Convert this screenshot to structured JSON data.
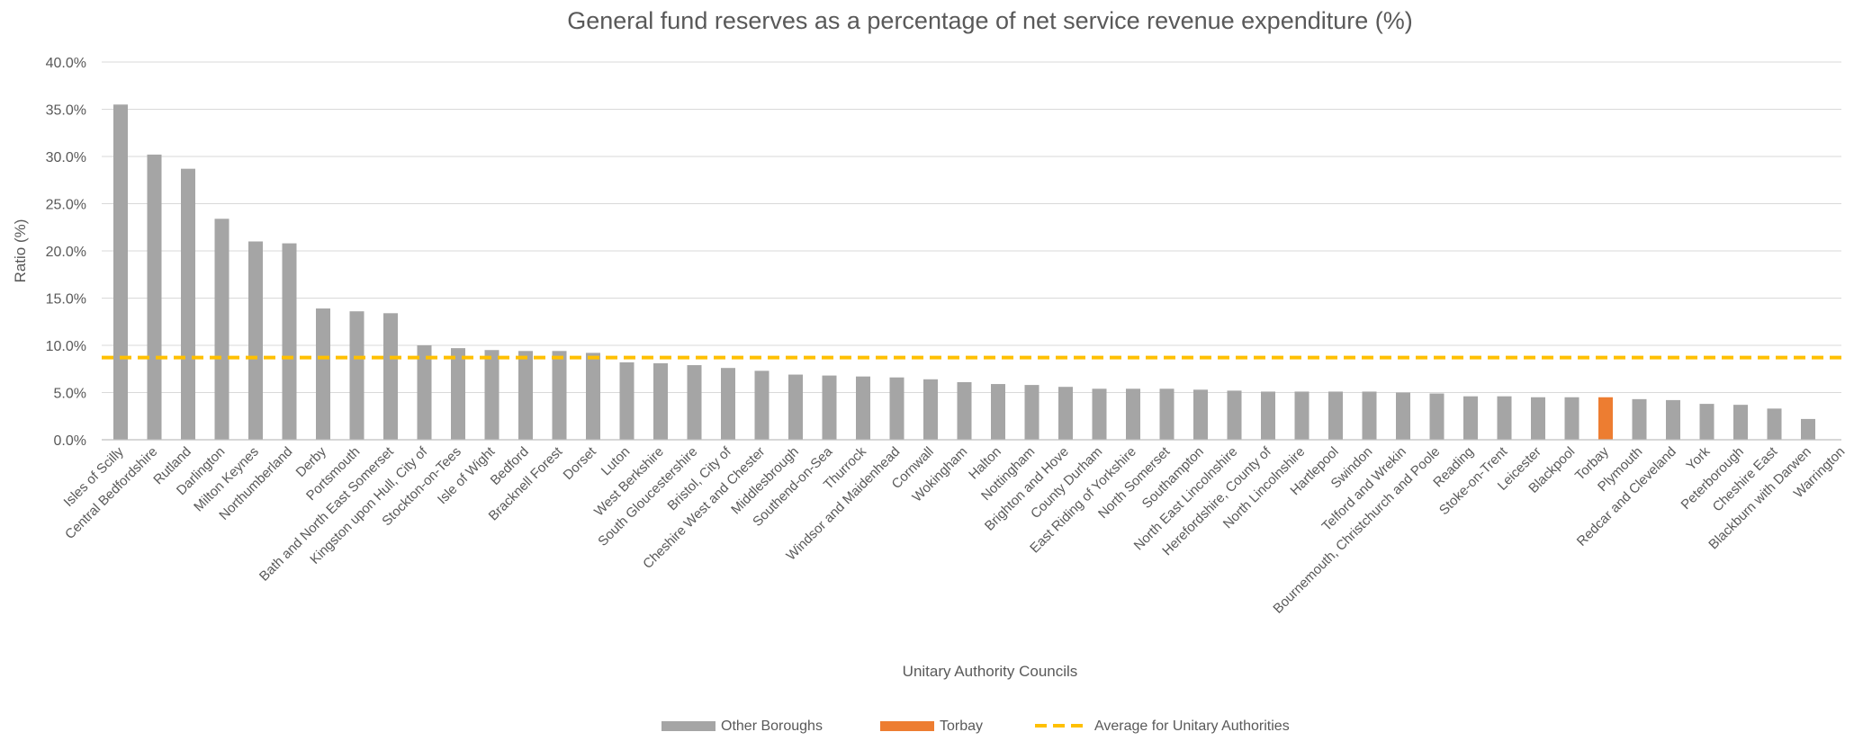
{
  "chart_data": {
    "type": "bar",
    "title": "General fund reserves as a percentage of net service revenue expenditure (%)",
    "xlabel": "Unitary Authority Councils",
    "ylabel": "Ratio (%)",
    "ylim": [
      0,
      40
    ],
    "yticks": [
      "0.0%",
      "5.0%",
      "10.0%",
      "15.0%",
      "20.0%",
      "25.0%",
      "30.0%",
      "35.0%",
      "40.0%"
    ],
    "grid": true,
    "legend_position": "bottom",
    "categories": [
      "Isles of Scilly",
      "Central Bedfordshire",
      "Rutland",
      "Darlington",
      "Milton Keynes",
      "Northumberland",
      "Derby",
      "Portsmouth",
      "Bath and North East Somerset",
      "Kingston upon Hull, City of",
      "Stockton-on-Tees",
      "Isle of Wight",
      "Bedford",
      "Bracknell Forest",
      "Dorset",
      "Luton",
      "West Berkshire",
      "South Gloucestershire",
      "Bristol, City of",
      "Cheshire West and Chester",
      "Middlesbrough",
      "Southend-on-Sea",
      "Thurrock",
      "Windsor and Maidenhead",
      "Cornwall",
      "Wokingham",
      "Halton",
      "Nottingham",
      "Brighton and Hove",
      "County Durham",
      "East Riding of Yorkshire",
      "North Somerset",
      "Southampton",
      "North East Lincolnshire",
      "Herefordshire, County of",
      "North Lincolnshire",
      "Hartlepool",
      "Swindon",
      "Telford and Wrekin",
      "Bournemouth, Christchurch and Poole",
      "Reading",
      "Stoke-on-Trent",
      "Leicester",
      "Blackpool",
      "Torbay",
      "Plymouth",
      "Redcar and Cleveland",
      "York",
      "Peterborough",
      "Cheshire East",
      "Blackburn with Darwen",
      "Warrington"
    ],
    "values": [
      35.5,
      30.2,
      28.7,
      23.4,
      21.0,
      20.8,
      13.9,
      13.6,
      13.4,
      10.0,
      9.7,
      9.5,
      9.4,
      9.4,
      9.2,
      8.2,
      8.1,
      7.9,
      7.6,
      7.3,
      6.9,
      6.8,
      6.7,
      6.6,
      6.4,
      6.1,
      5.9,
      5.8,
      5.6,
      5.4,
      5.4,
      5.4,
      5.3,
      5.2,
      5.1,
      5.1,
      5.1,
      5.1,
      5.0,
      4.9,
      4.6,
      4.6,
      4.5,
      4.5,
      4.5,
      4.3,
      4.2,
      3.8,
      3.7,
      3.3,
      2.2,
      0
    ],
    "highlight_category": "Torbay",
    "average_value": 8.7,
    "series": [
      {
        "name": "Other Boroughs",
        "color": "#a5a5a5"
      },
      {
        "name": "Torbay",
        "color": "#ed7d31"
      },
      {
        "name": "Average for Unitary Authorities",
        "color": "#ffc000",
        "style": "dashed-line"
      }
    ]
  }
}
